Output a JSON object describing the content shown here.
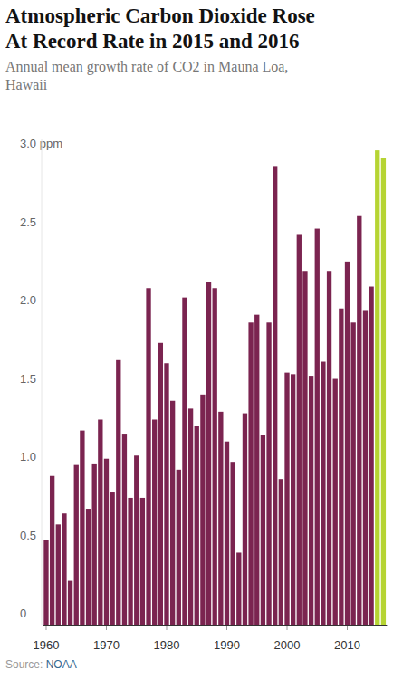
{
  "chart_data": {
    "type": "bar",
    "title": "Atmospheric Carbon Dioxide Rose At Record Rate in 2015 and 2016",
    "subtitle": "Annual mean growth rate of CO2 in Mauna Loa, Hawaii",
    "source": "Source: NOAA",
    "x": [
      1960,
      1961,
      1962,
      1963,
      1964,
      1965,
      1966,
      1967,
      1968,
      1969,
      1970,
      1971,
      1972,
      1973,
      1974,
      1975,
      1976,
      1977,
      1978,
      1979,
      1980,
      1981,
      1982,
      1983,
      1984,
      1985,
      1986,
      1987,
      1988,
      1989,
      1990,
      1991,
      1992,
      1993,
      1994,
      1995,
      1996,
      1997,
      1998,
      1999,
      2000,
      2001,
      2002,
      2003,
      2004,
      2005,
      2006,
      2007,
      2008,
      2009,
      2010,
      2011,
      2012,
      2013,
      2014,
      2015,
      2016
    ],
    "values": [
      0.54,
      0.95,
      0.64,
      0.71,
      0.28,
      1.02,
      1.24,
      0.74,
      1.03,
      1.31,
      1.06,
      0.85,
      1.69,
      1.22,
      0.81,
      1.08,
      0.81,
      2.15,
      1.31,
      1.8,
      1.67,
      1.43,
      0.99,
      2.09,
      1.38,
      1.27,
      1.47,
      2.19,
      2.15,
      1.36,
      1.17,
      1.04,
      0.46,
      1.35,
      1.93,
      1.98,
      1.21,
      1.93,
      2.93,
      0.93,
      1.61,
      1.6,
      2.49,
      2.26,
      1.59,
      2.53,
      1.68,
      2.26,
      1.57,
      2.02,
      2.32,
      1.93,
      2.61,
      2.01,
      2.16,
      3.03,
      2.98
    ],
    "colors": [
      "#7b2450",
      "#7b2450",
      "#7b2450",
      "#7b2450",
      "#7b2450",
      "#7b2450",
      "#7b2450",
      "#7b2450",
      "#7b2450",
      "#7b2450",
      "#7b2450",
      "#7b2450",
      "#7b2450",
      "#7b2450",
      "#7b2450",
      "#7b2450",
      "#7b2450",
      "#7b2450",
      "#7b2450",
      "#7b2450",
      "#7b2450",
      "#7b2450",
      "#7b2450",
      "#7b2450",
      "#7b2450",
      "#7b2450",
      "#7b2450",
      "#7b2450",
      "#7b2450",
      "#7b2450",
      "#7b2450",
      "#7b2450",
      "#7b2450",
      "#7b2450",
      "#7b2450",
      "#7b2450",
      "#7b2450",
      "#7b2450",
      "#7b2450",
      "#7b2450",
      "#7b2450",
      "#7b2450",
      "#7b2450",
      "#7b2450",
      "#7b2450",
      "#7b2450",
      "#7b2450",
      "#7b2450",
      "#7b2450",
      "#7b2450",
      "#7b2450",
      "#7b2450",
      "#7b2450",
      "#7b2450",
      "#7b2450",
      "#b6d433",
      "#b6d433"
    ],
    "xlim": [
      1959.4,
      2016.6
    ],
    "xticks": [
      1960,
      1970,
      1980,
      1990,
      2000,
      2010
    ],
    "ylim": [
      0,
      3.1
    ],
    "yticks": [
      0,
      0.5,
      {
        "value": 1,
        "label": "1.0"
      },
      1.5,
      {
        "value": 2,
        "label": "2.0"
      },
      2.5,
      {
        "value": 3,
        "label": "3.0 ppm"
      }
    ],
    "grid": false
  }
}
